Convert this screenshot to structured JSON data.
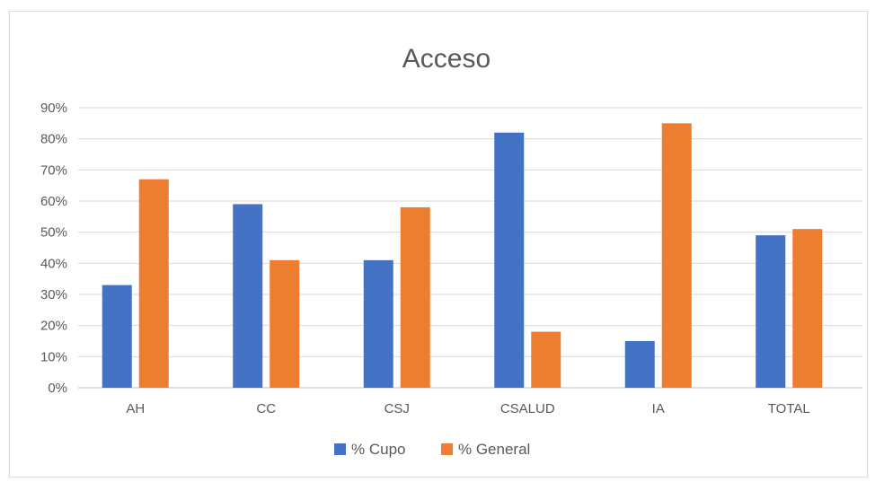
{
  "chart_data": {
    "type": "bar",
    "title": "Acceso",
    "xlabel": "",
    "ylabel": "",
    "categories": [
      "AH",
      "CC",
      "CSJ",
      "CSALUD",
      "IA",
      "TOTAL"
    ],
    "series": [
      {
        "name": "% Cupo",
        "color": "#4472c4",
        "values": [
          33,
          59,
          41,
          82,
          15,
          49
        ]
      },
      {
        "name": "% General",
        "color": "#ed7d31",
        "values": [
          67,
          41,
          58,
          18,
          85,
          51
        ]
      }
    ],
    "ylim": [
      0,
      90
    ],
    "yticks": [
      0,
      10,
      20,
      30,
      40,
      50,
      60,
      70,
      80,
      90
    ],
    "ytick_labels": [
      "0%",
      "10%",
      "20%",
      "30%",
      "40%",
      "50%",
      "60%",
      "70%",
      "80%",
      "90%"
    ],
    "grid": true,
    "legend_position": "bottom"
  }
}
